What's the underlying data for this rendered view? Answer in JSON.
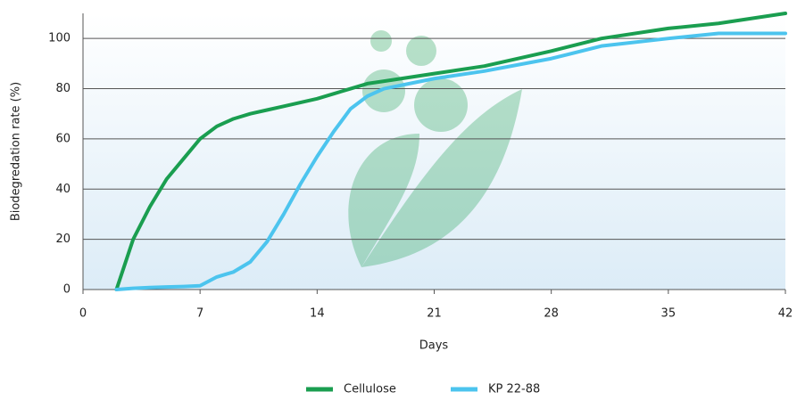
{
  "chart_data": {
    "type": "line",
    "x_label": "Days",
    "y_label": "Biodegredation rate (%)",
    "x": [
      2,
      3,
      4,
      5,
      6,
      7,
      8,
      9,
      10,
      11,
      12,
      13,
      14,
      15,
      16,
      17,
      18,
      21,
      24,
      28,
      31,
      35,
      38,
      42
    ],
    "series": [
      {
        "name": "Cellulose",
        "color": "#1a9e50",
        "values": [
          0,
          20,
          33,
          44,
          52,
          60,
          65,
          68,
          70,
          71.5,
          73,
          74.5,
          76,
          78,
          80,
          82,
          83,
          86,
          89,
          95,
          100,
          104,
          106,
          110
        ]
      },
      {
        "name": "KP 22-88",
        "color": "#4cc4ee",
        "values": [
          0,
          0.5,
          0.8,
          1,
          1.2,
          1.5,
          5,
          7,
          11,
          19,
          30,
          42,
          53,
          63,
          72,
          77,
          80,
          84,
          87,
          92,
          97,
          100,
          102,
          102
        ]
      }
    ],
    "xlim": [
      0,
      42
    ],
    "xticks": [
      0,
      7,
      14,
      21,
      28,
      35,
      42
    ],
    "ylim": [
      0,
      110
    ],
    "yticks": [
      0,
      20,
      40,
      60,
      80,
      100
    ],
    "grid": true,
    "legend": "bottom"
  }
}
